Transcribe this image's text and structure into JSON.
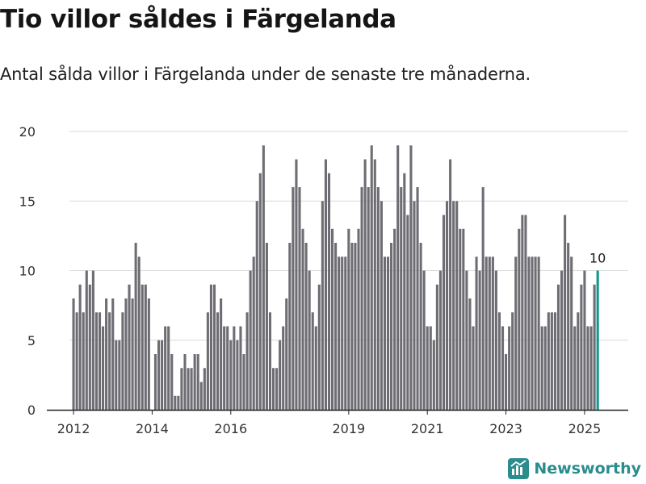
{
  "header": {
    "title": "Tio villor såldes i Färgelanda",
    "subtitle": "Antal sålda villor i Färgelanda under de senaste tre månaderna."
  },
  "brand": {
    "name": "Newsworthy"
  },
  "colors": {
    "bar": "#6e6d73",
    "highlight": "#14968e",
    "grid": "#d9d9d9",
    "brand": "#2a8c8c"
  },
  "chart_data": {
    "type": "bar",
    "title": "",
    "xlabel": "",
    "ylabel": "",
    "ylim": [
      0,
      20
    ],
    "yticks": [
      0,
      5,
      10,
      15,
      20
    ],
    "xticks": [
      {
        "label": "2012",
        "index": 0
      },
      {
        "label": "2014",
        "index": 24
      },
      {
        "label": "2016",
        "index": 48
      },
      {
        "label": "2019",
        "index": 84
      },
      {
        "label": "2021",
        "index": 108
      },
      {
        "label": "2023",
        "index": 132
      },
      {
        "label": "2025",
        "index": 156
      }
    ],
    "period": "monthly, Jan 2012 – Apr 2025",
    "values": [
      8,
      7,
      9,
      7,
      10,
      9,
      10,
      7,
      7,
      6,
      8,
      7,
      8,
      5,
      5,
      7,
      8,
      9,
      8,
      12,
      11,
      9,
      9,
      8,
      0,
      4,
      5,
      5,
      6,
      6,
      4,
      1,
      1,
      3,
      4,
      3,
      3,
      4,
      4,
      2,
      3,
      7,
      9,
      9,
      7,
      8,
      6,
      6,
      5,
      6,
      5,
      6,
      4,
      7,
      10,
      11,
      15,
      17,
      19,
      12,
      7,
      3,
      3,
      5,
      6,
      8,
      12,
      16,
      18,
      16,
      13,
      12,
      10,
      7,
      6,
      9,
      15,
      18,
      17,
      13,
      12,
      11,
      11,
      11,
      13,
      12,
      12,
      13,
      16,
      18,
      16,
      19,
      18,
      16,
      15,
      11,
      11,
      12,
      13,
      19,
      16,
      17,
      14,
      19,
      15,
      16,
      12,
      10,
      6,
      6,
      5,
      9,
      10,
      14,
      15,
      18,
      15,
      15,
      13,
      13,
      10,
      8,
      6,
      11,
      10,
      16,
      11,
      11,
      11,
      10,
      7,
      6,
      4,
      6,
      7,
      11,
      13,
      14,
      14,
      11,
      11,
      11,
      11,
      6,
      6,
      7,
      7,
      7,
      9,
      10,
      14,
      12,
      11,
      6,
      7,
      9,
      10,
      6,
      6,
      9,
      10
    ],
    "highlight_label": "10"
  }
}
